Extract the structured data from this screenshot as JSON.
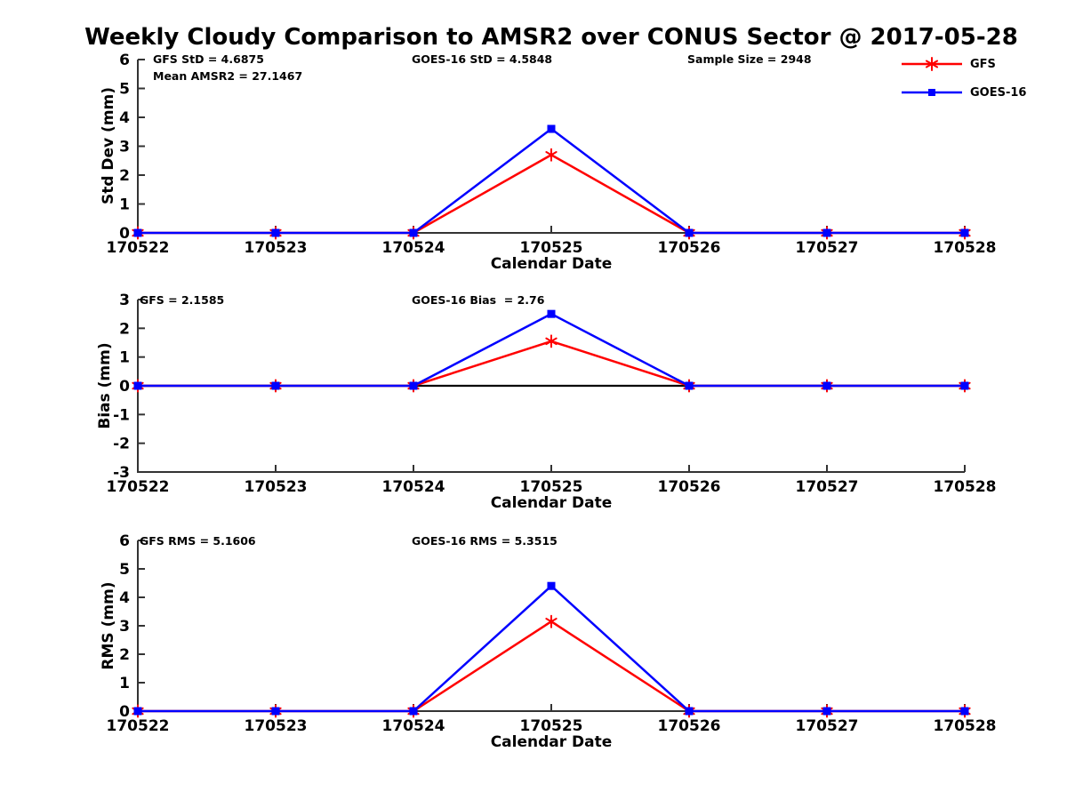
{
  "title": "Weekly Cloudy Comparison to AMSR2 over CONUS Sector @ 2017-05-28",
  "colors": {
    "gfs": "#ff0000",
    "goes16": "#0000ff",
    "axis": "#333333",
    "text": "#000000",
    "zero_line": "#000000"
  },
  "legend": {
    "items": [
      {
        "label": "GFS",
        "color": "#ff0000",
        "marker": "asterisk"
      },
      {
        "label": "GOES-16",
        "color": "#0000ff",
        "marker": "square"
      }
    ]
  },
  "chart_data": [
    {
      "type": "line",
      "ylabel": "Std Dev (mm)",
      "xlabel": "Calendar Date",
      "categories": [
        "170522",
        "170523",
        "170524",
        "170525",
        "170526",
        "170527",
        "170528"
      ],
      "ylim": [
        0,
        6
      ],
      "yticks": [
        0,
        1,
        2,
        3,
        4,
        5,
        6
      ],
      "zero_line": false,
      "grid": false,
      "legend_position": "top-right-outside",
      "series": [
        {
          "name": "GFS",
          "color": "#ff0000",
          "marker": "asterisk",
          "values": [
            0,
            0,
            0,
            2.7,
            0,
            0,
            0
          ]
        },
        {
          "name": "GOES-16",
          "color": "#0000ff",
          "marker": "square",
          "values": [
            0,
            0,
            0,
            3.6,
            0,
            0,
            0
          ]
        }
      ],
      "stats": {
        "gfs": "GFS StD = 4.6875",
        "mean_amsr2": "Mean AMSR2 = 27.1467",
        "goes16": "GOES-16 StD = 4.5848",
        "sample_size": "Sample Size = 2948"
      }
    },
    {
      "type": "line",
      "ylabel": "Bias (mm)",
      "xlabel": "Calendar Date",
      "categories": [
        "170522",
        "170523",
        "170524",
        "170525",
        "170526",
        "170527",
        "170528"
      ],
      "ylim": [
        -3,
        3
      ],
      "yticks": [
        -3,
        -2,
        -1,
        0,
        1,
        2,
        3
      ],
      "zero_line": true,
      "grid": false,
      "series": [
        {
          "name": "GFS",
          "color": "#ff0000",
          "marker": "asterisk",
          "values": [
            0,
            0,
            0,
            1.55,
            0,
            0,
            0
          ]
        },
        {
          "name": "GOES-16",
          "color": "#0000ff",
          "marker": "square",
          "values": [
            0,
            0,
            0,
            2.5,
            0,
            0,
            0
          ]
        }
      ],
      "stats": {
        "gfs": "GFS = 2.1585",
        "goes16": "GOES-16 Bias  = 2.76"
      }
    },
    {
      "type": "line",
      "ylabel": "RMS (mm)",
      "xlabel": "Calendar Date",
      "categories": [
        "170522",
        "170523",
        "170524",
        "170525",
        "170526",
        "170527",
        "170528"
      ],
      "ylim": [
        0,
        6
      ],
      "yticks": [
        0,
        1,
        2,
        3,
        4,
        5,
        6
      ],
      "zero_line": false,
      "grid": false,
      "series": [
        {
          "name": "GFS",
          "color": "#ff0000",
          "marker": "asterisk",
          "values": [
            0,
            0,
            0,
            3.15,
            0,
            0,
            0
          ]
        },
        {
          "name": "GOES-16",
          "color": "#0000ff",
          "marker": "square",
          "values": [
            0,
            0,
            0,
            4.4,
            0,
            0,
            0
          ]
        }
      ],
      "stats": {
        "gfs": "GFS RMS = 5.1606",
        "goes16": "GOES-16 RMS = 5.3515"
      }
    }
  ]
}
